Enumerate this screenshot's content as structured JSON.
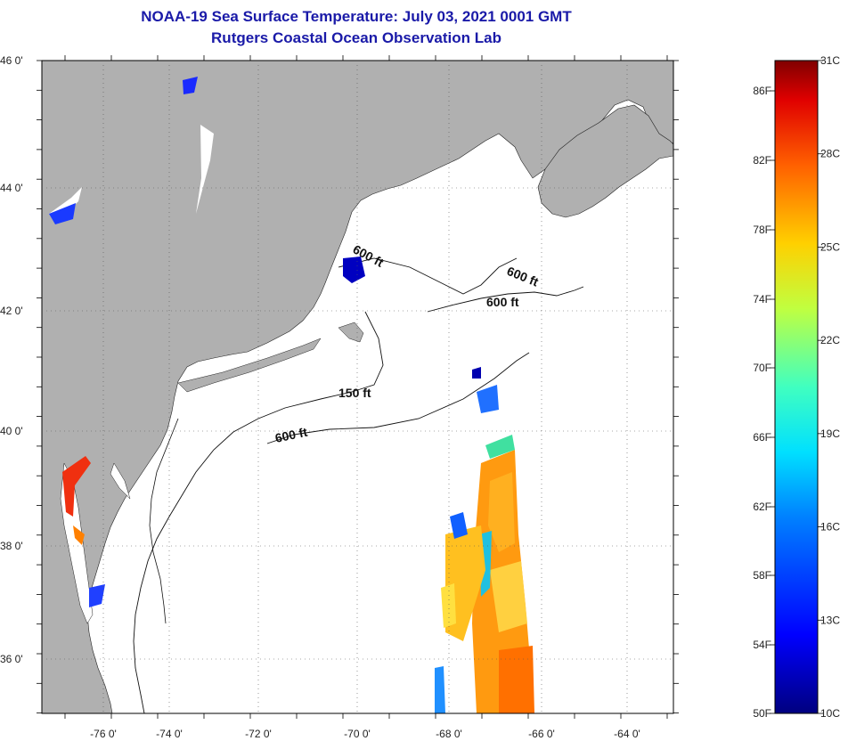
{
  "title": "NOAA-19 Sea Surface Temperature:  July 03, 2021 0001 GMT",
  "subtitle": "Rutgers Coastal Ocean Observation Lab",
  "colors": {
    "land": "#b0b0b0",
    "ocean": "#ffffff",
    "title": "#1a1aa8"
  },
  "latitude_labels": [
    "46 0'",
    "44 0'",
    "42 0'",
    "40 0'",
    "38 0'",
    "36 0'"
  ],
  "longitude_labels": [
    "-76 0'",
    "-74 0'",
    "-72 0'",
    "-70 0'",
    "-68 0'",
    "-66 0'",
    "-64 0'"
  ],
  "depth_labels": [
    "600 ft",
    "600 ft",
    "600 ft",
    "150 ft",
    "600 ft"
  ],
  "colorbar": {
    "celsius": [
      "31C",
      "28C",
      "25C",
      "22C",
      "19C",
      "16C",
      "13C",
      "10C"
    ],
    "fahrenheit": [
      "86F",
      "82F",
      "78F",
      "74F",
      "70F",
      "66F",
      "62F",
      "58F",
      "54F",
      "50F"
    ]
  }
}
